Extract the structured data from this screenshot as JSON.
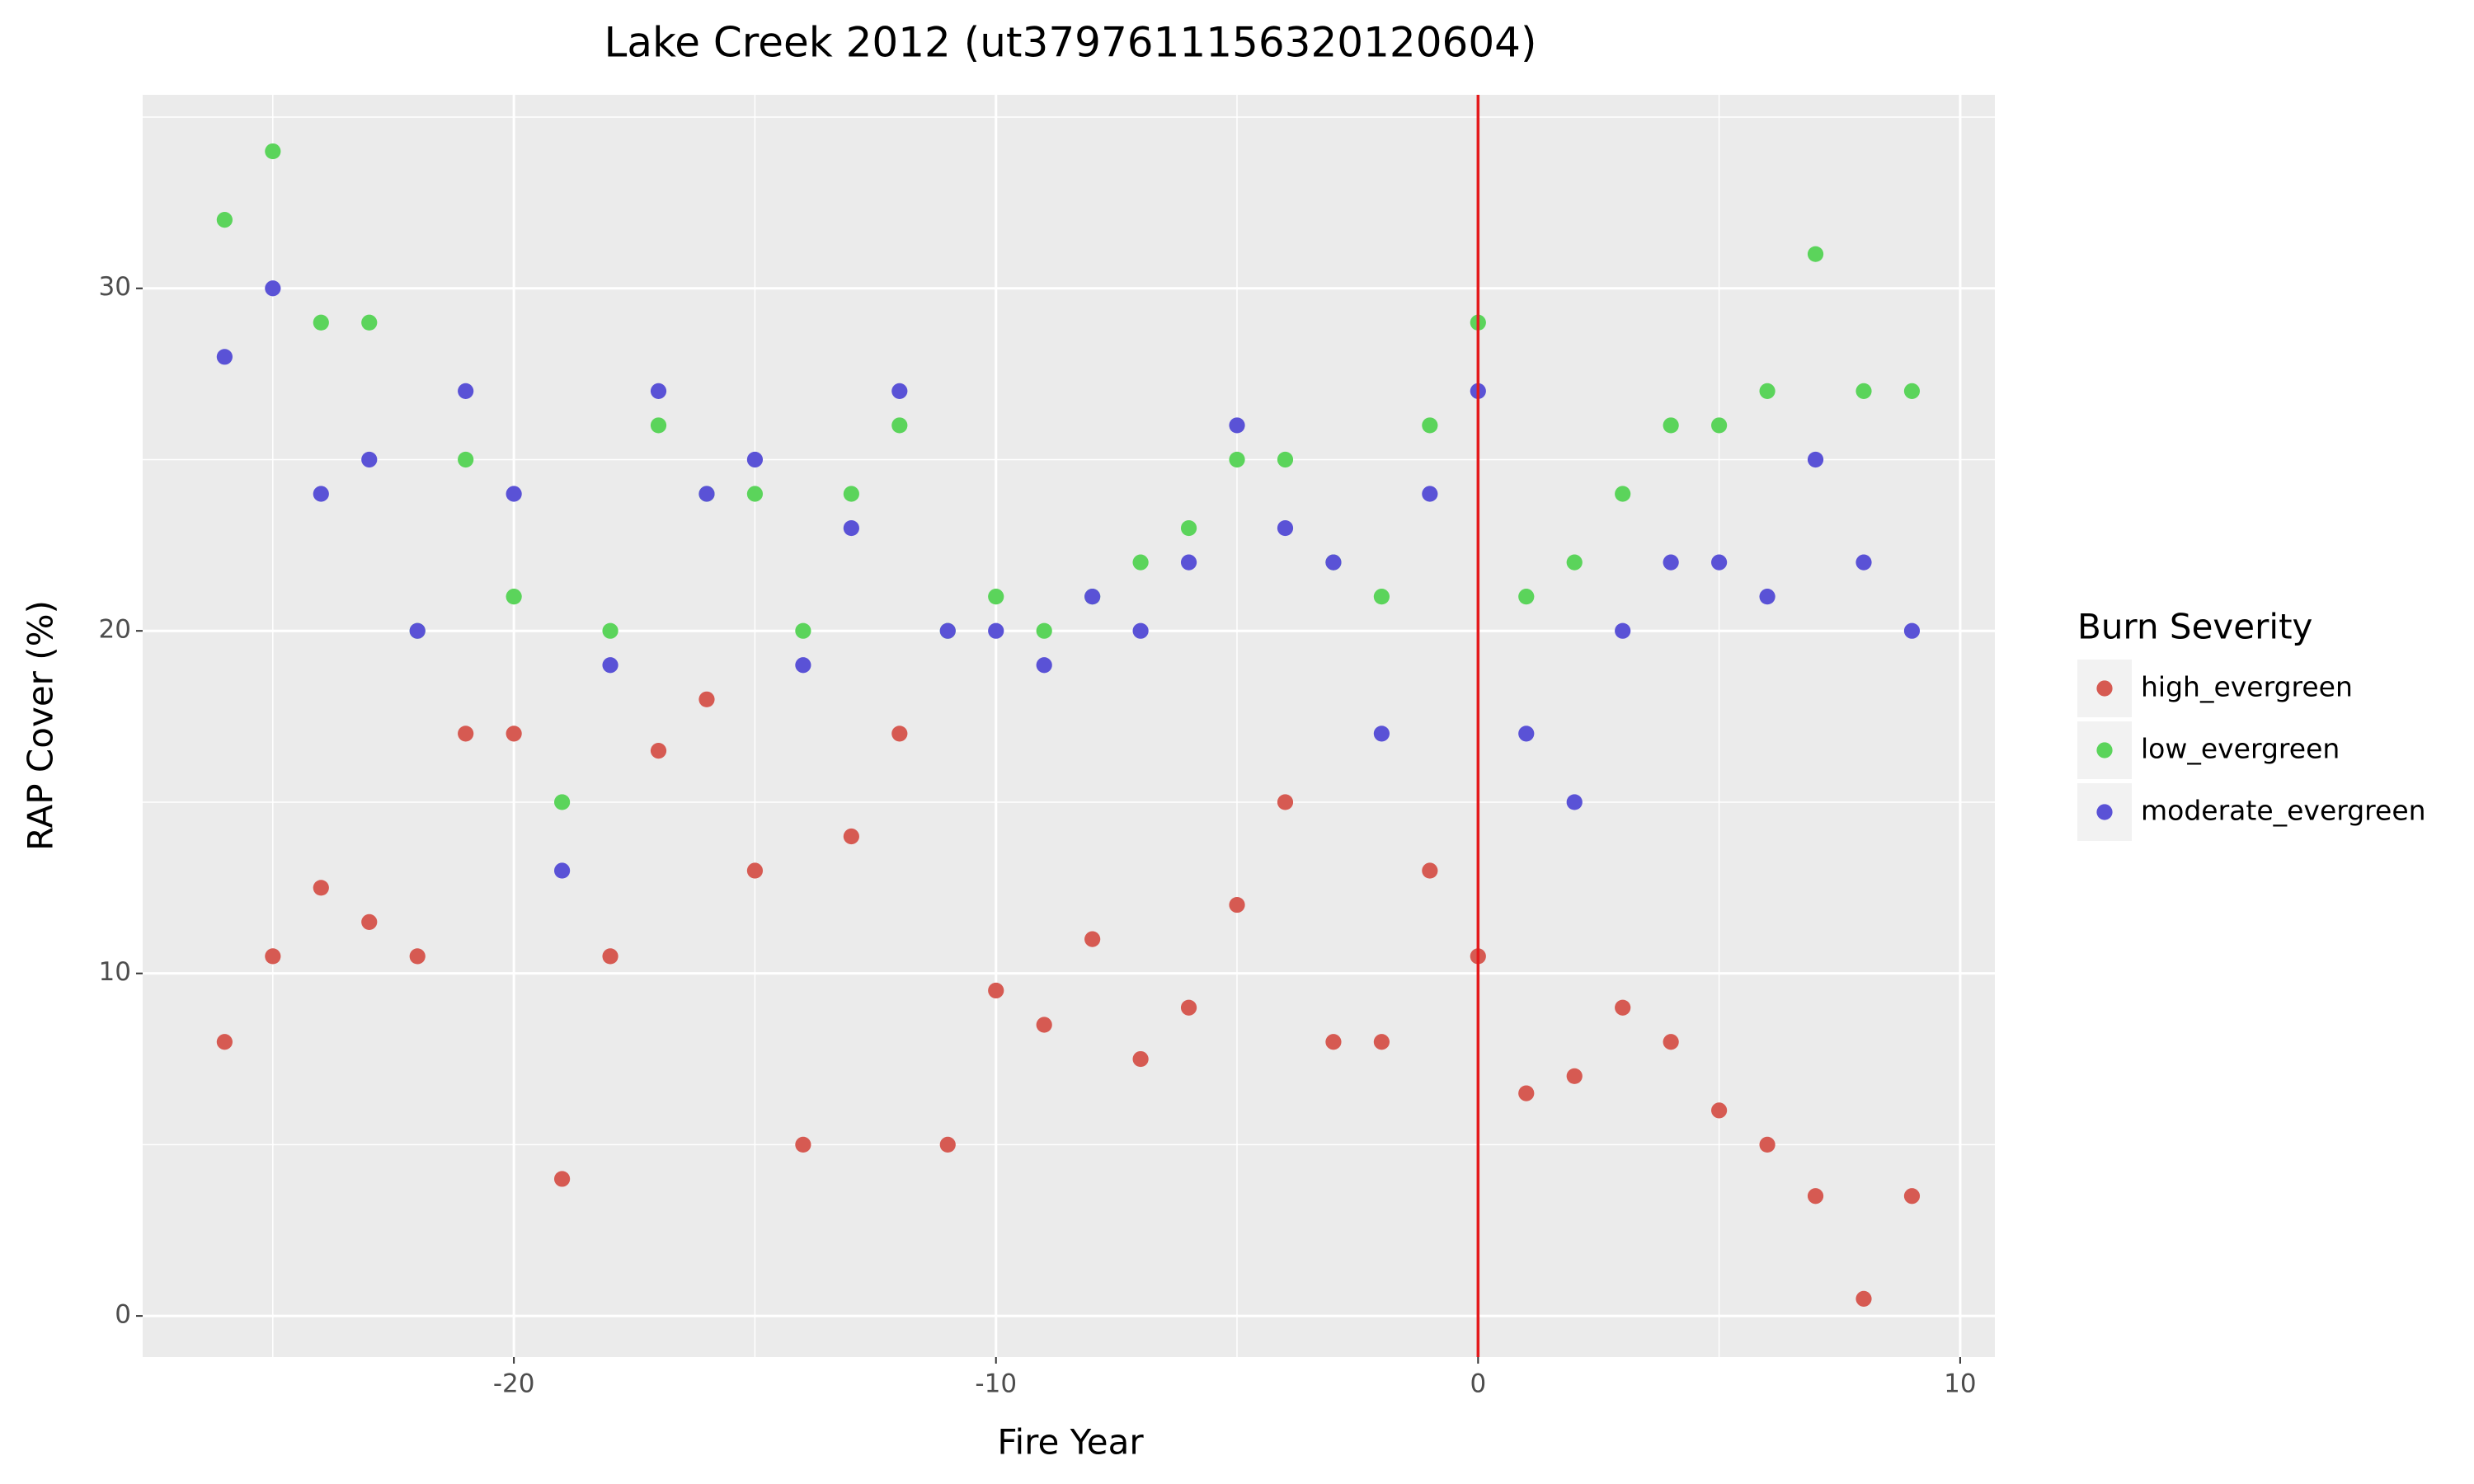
{
  "chart_data": {
    "type": "scatter",
    "title": "Lake Creek 2012 (ut3797611156320120604)",
    "x_label": "Fire Year",
    "y_label": "RAP Cover (%)",
    "legend_title": "Burn Severity",
    "legend_position": "right",
    "x": [
      -26,
      -25,
      -24,
      -23,
      -22,
      -21,
      -20,
      -19,
      -18,
      -17,
      -16,
      -15,
      -14,
      -13,
      -12,
      -11,
      -10,
      -9,
      -8,
      -7,
      -6,
      -5,
      -4,
      -3,
      -2,
      -1,
      0,
      1,
      2,
      3,
      4,
      5,
      6,
      7,
      8,
      9
    ],
    "series": [
      {
        "name": "high_evergreen",
        "color": "#d65a52",
        "values": [
          8,
          10.5,
          12.5,
          11.5,
          10.5,
          17,
          17,
          4,
          10.5,
          16.5,
          18,
          13,
          5,
          14,
          17,
          5,
          9.5,
          8.5,
          11,
          7.5,
          9,
          12,
          15,
          8,
          8,
          13,
          10.5,
          6.5,
          7,
          9,
          8,
          6,
          5,
          3.5,
          0.5,
          3.5
        ]
      },
      {
        "name": "low_evergreen",
        "color": "#5bd45b",
        "values": [
          32,
          34,
          29,
          29,
          20,
          25,
          21,
          15,
          20,
          26,
          24,
          24,
          20,
          24,
          26,
          20,
          21,
          20,
          21,
          22,
          23,
          25,
          25,
          22,
          21,
          26,
          29,
          21,
          22,
          24,
          26,
          26,
          27,
          31,
          27,
          27
        ]
      },
      {
        "name": "moderate_evergreen",
        "color": "#5a52d6",
        "values": [
          28,
          30,
          24,
          25,
          20,
          27,
          24,
          13,
          19,
          27,
          24,
          25,
          19,
          23,
          27,
          20,
          20,
          19,
          21,
          20,
          22,
          26,
          23,
          22,
          17,
          24,
          27,
          17,
          15,
          20,
          22,
          22,
          21,
          25,
          22,
          20
        ]
      }
    ],
    "xlim": [
      -27.7,
      10.72
    ],
    "ylim": [
      -1.2,
      35.65
    ],
    "xticks": [
      -20,
      -10,
      0,
      10
    ],
    "yticks": [
      0,
      10,
      20,
      30
    ],
    "xminorticks": [
      -25,
      -15,
      -5,
      5
    ],
    "yminorticks": [
      5,
      15,
      25,
      35
    ],
    "grid": true,
    "vline": {
      "x": 0,
      "color": "#e41a1c"
    }
  }
}
